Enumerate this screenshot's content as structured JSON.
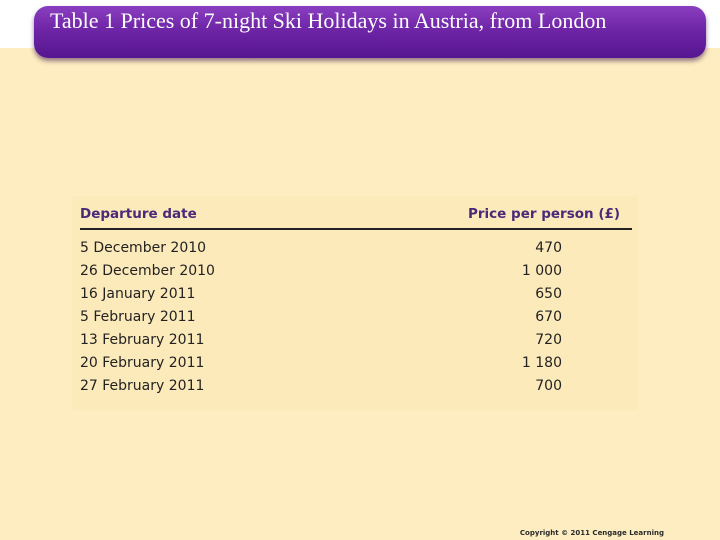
{
  "slide": {
    "title": "Table 1 Prices of 7-night Ski Holidays in Austria, from London",
    "copyright": "Copyright © 2011 Cengage Learning"
  },
  "table": {
    "headers": {
      "date": "Departure date",
      "price": "Price per person (£)"
    },
    "rows": [
      {
        "date": "5 December 2010",
        "price": "470"
      },
      {
        "date": "26 December 2010",
        "price": "1 000"
      },
      {
        "date": "16 January 2011",
        "price": "650"
      },
      {
        "date": "5 February 2011",
        "price": "670"
      },
      {
        "date": "13 February 2011",
        "price": "720"
      },
      {
        "date": "20 February 2011",
        "price": "1 180"
      },
      {
        "date": "27 February 2011",
        "price": "700"
      }
    ]
  }
}
